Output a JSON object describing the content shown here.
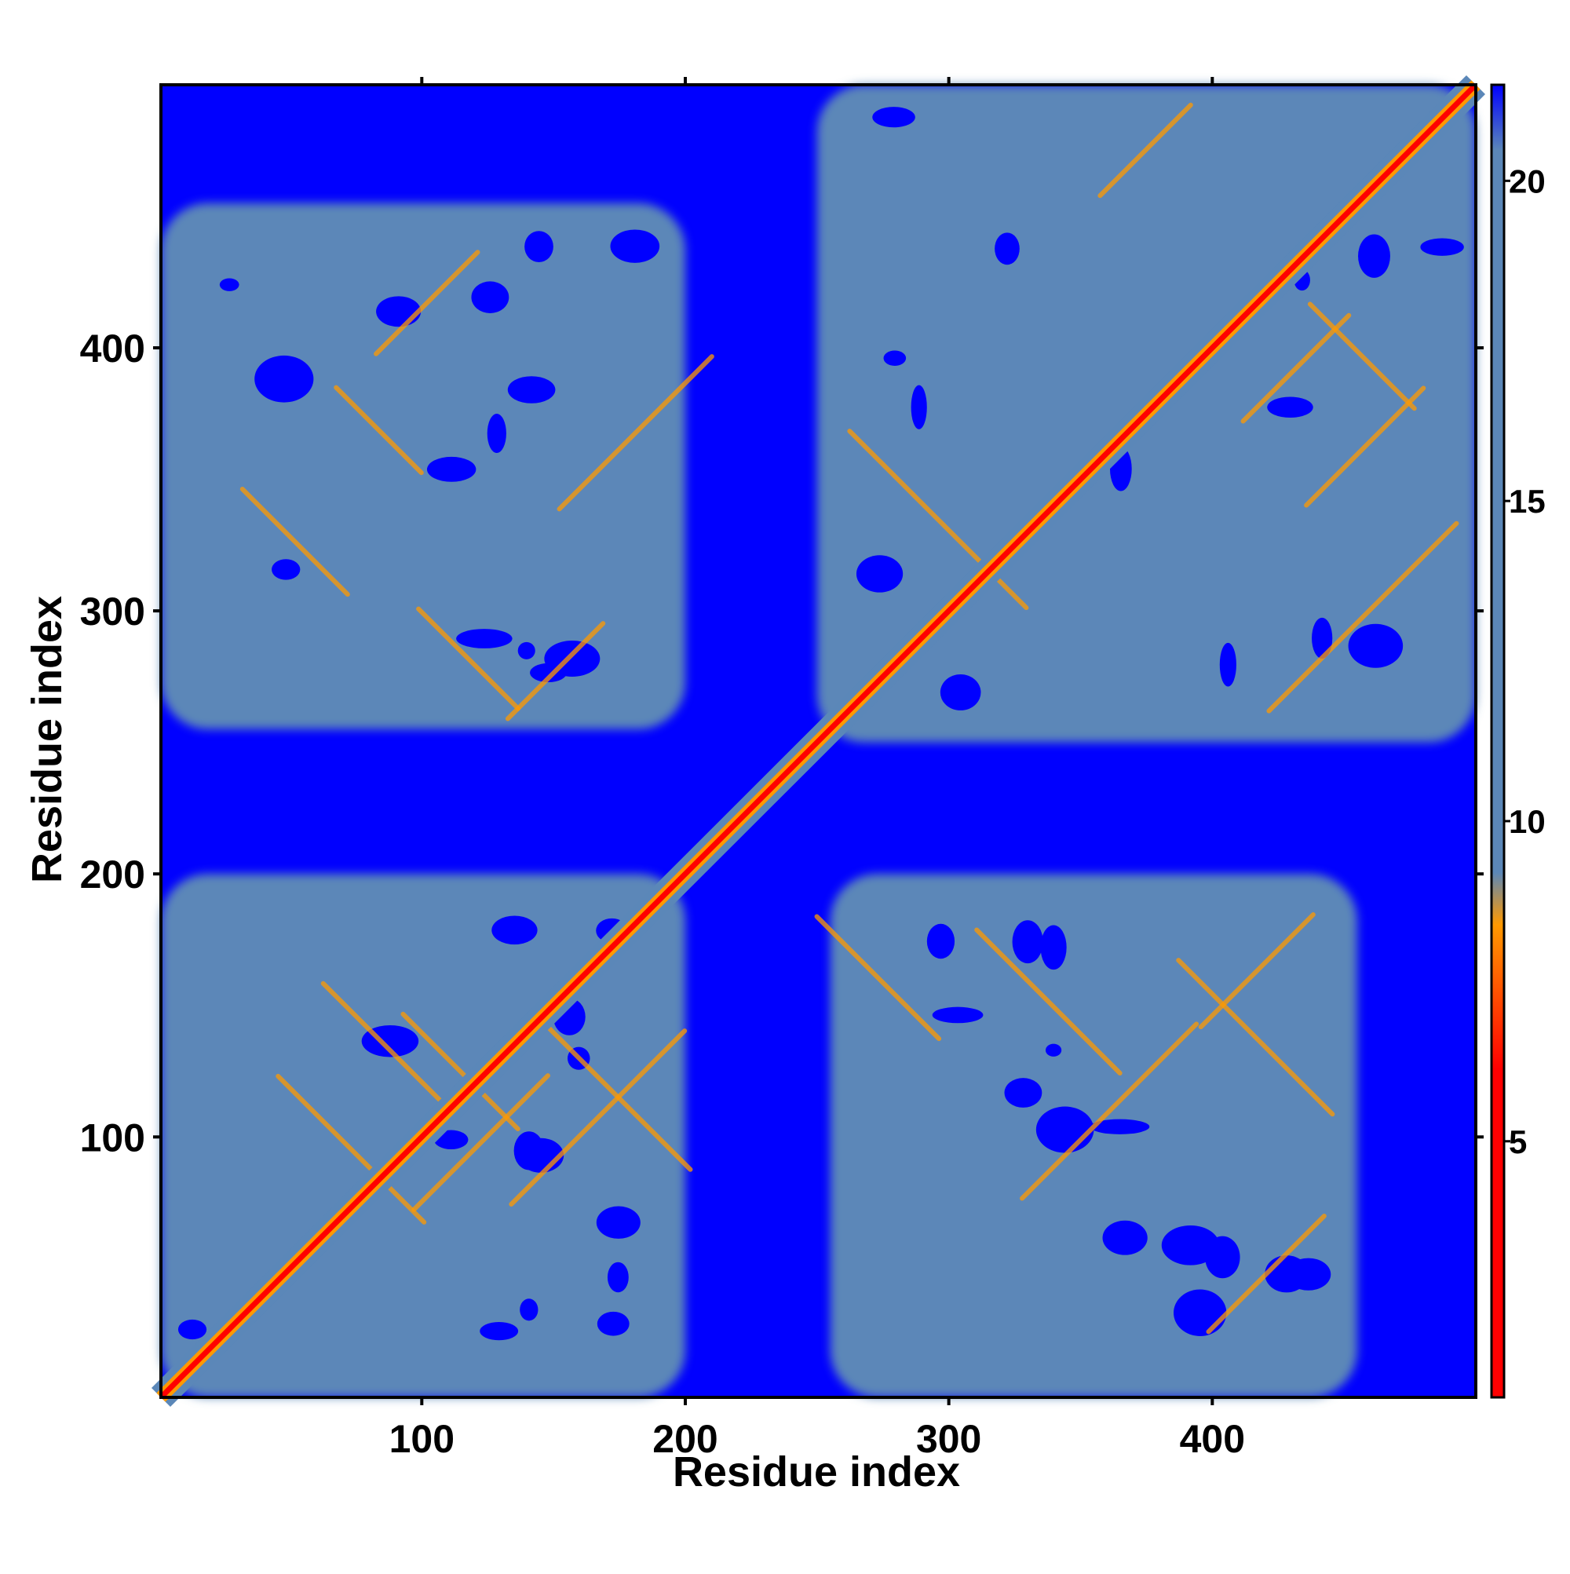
{
  "chart_data": {
    "type": "heatmap",
    "title": "",
    "xlabel": "Residue index",
    "ylabel": "Residue index",
    "xlim": [
      1,
      500
    ],
    "ylim": [
      1,
      500
    ],
    "x_ticks": [
      100,
      200,
      300,
      400
    ],
    "y_ticks": [
      100,
      200,
      300,
      400
    ],
    "colorbar": {
      "ticks": [
        5,
        10,
        15,
        20
      ],
      "range": [
        1,
        21.5
      ],
      "colors": {
        "near": "#ff0000",
        "mid": "#ff9900",
        "contact": "#5b87b8",
        "far": "#0000ff"
      }
    },
    "blocks": [
      {
        "x": [
          1,
          200
        ],
        "y": [
          1,
          200
        ],
        "level": 14
      },
      {
        "x": [
          250,
          500
        ],
        "y": [
          250,
          500
        ],
        "level": 14
      },
      {
        "x": [
          1,
          200
        ],
        "y": [
          255,
          455
        ],
        "level": 15
      },
      {
        "x": [
          255,
          455
        ],
        "y": [
          1,
          200
        ],
        "level": 15
      }
    ],
    "diagonal": {
      "from": [
        1,
        1
      ],
      "to": [
        500,
        500
      ],
      "level": 1
    },
    "background_level": 21
  }
}
